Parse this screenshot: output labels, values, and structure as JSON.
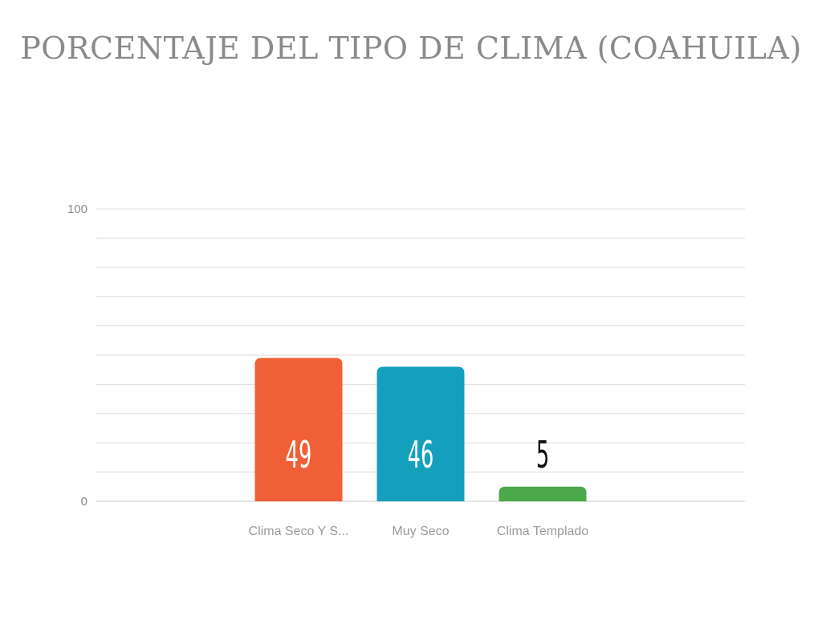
{
  "chart_data": {
    "type": "bar",
    "title": "PORCENTAJE DEL TIPO DE CLIMA (COAHUILA)",
    "categories": [
      "Clima Seco Y S...",
      "Muy Seco",
      "Clima Templado"
    ],
    "values": [
      49,
      46,
      5
    ],
    "colors": [
      "#f05f35",
      "#149fbd",
      "#4aa84b"
    ],
    "data_label_colors": [
      "#ffffff",
      "#ffffff",
      "#111111"
    ],
    "xlabel": "",
    "ylabel": "",
    "ylim": [
      0,
      100
    ],
    "yticks": [
      "0",
      "100"
    ],
    "grid": true,
    "legend": "none"
  }
}
